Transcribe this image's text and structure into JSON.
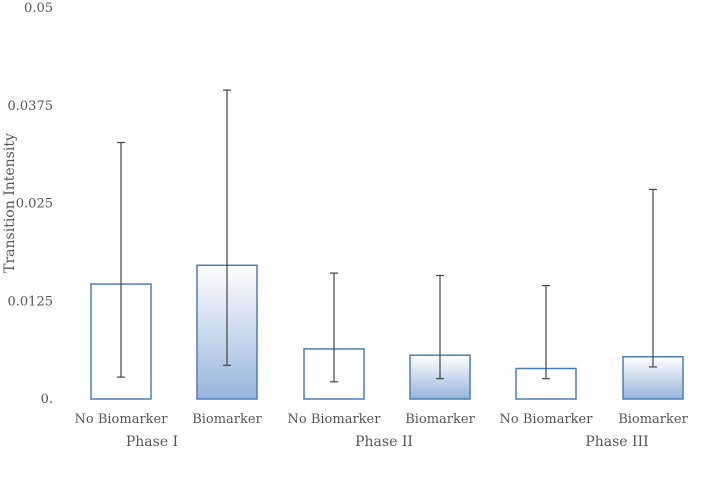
{
  "chart_data": {
    "type": "bar",
    "ylabel": "Transition Intensity",
    "ylim": [
      0,
      0.05
    ],
    "yticks": [
      {
        "value": 0,
        "label": "0."
      },
      {
        "value": 0.0125,
        "label": "0.0125"
      },
      {
        "value": 0.025,
        "label": "0.025"
      },
      {
        "value": 0.0375,
        "label": "0.0375"
      },
      {
        "value": 0.05,
        "label": "0.05"
      }
    ],
    "grid": false,
    "groups": [
      "Phase I",
      "Phase II",
      "Phase III"
    ],
    "categories": [
      "No Biomarker",
      "Biomarker",
      "No Biomarker",
      "Biomarker",
      "No Biomarker",
      "Biomarker"
    ],
    "group_index": [
      0,
      0,
      1,
      1,
      2,
      2
    ],
    "values": [
      0.0147,
      0.0171,
      0.0064,
      0.0056,
      0.0039,
      0.0054
    ],
    "error_low": [
      0.0028,
      0.0043,
      0.0022,
      0.0026,
      0.0026,
      0.0041
    ],
    "error_high": [
      0.0328,
      0.0395,
      0.0161,
      0.0158,
      0.0145,
      0.0268
    ],
    "fill": [
      "plain",
      "gradient",
      "plain",
      "gradient",
      "plain",
      "gradient"
    ],
    "colors": {
      "bar_border": "#4a7ebb",
      "gradient_top": "#ffffff",
      "gradient_bottom": "#98b4db",
      "error_bar": "#444444",
      "text": "#555555"
    }
  }
}
